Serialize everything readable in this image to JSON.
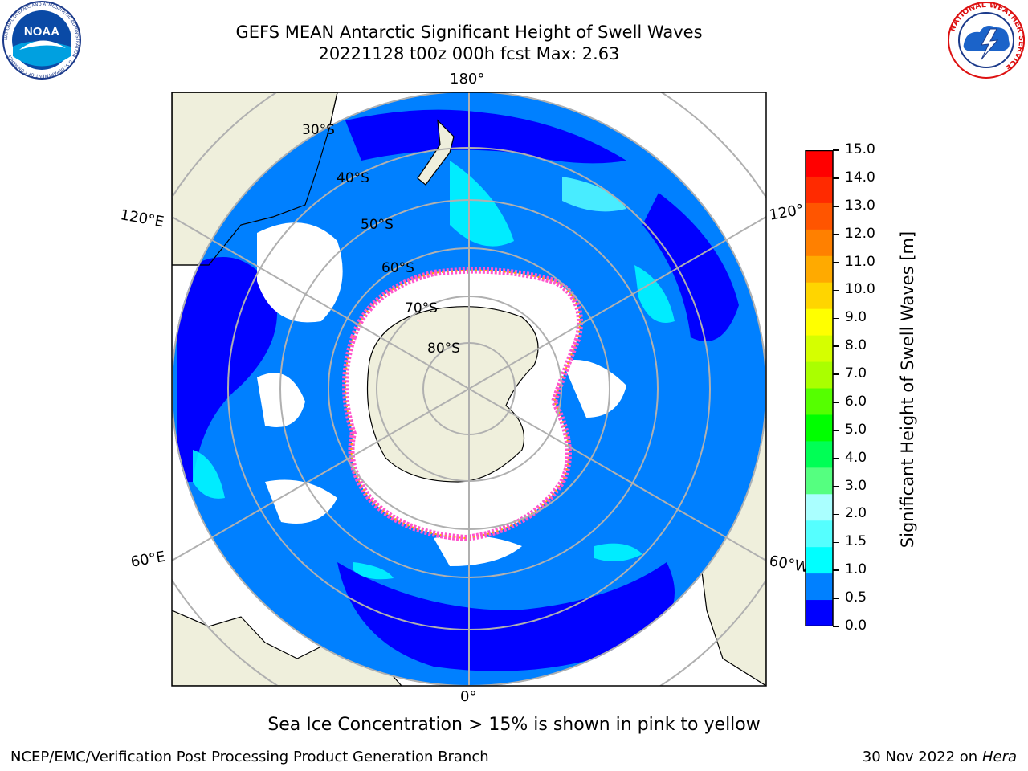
{
  "title_line1": "GEFS MEAN Antarctic Significant Height of Swell Waves",
  "title_line2": "20221128 t00z 000h fcst   Max: 2.63",
  "logos": {
    "noaa": {
      "text": "NOAA",
      "ring_text": "NATIONAL OCEANIC AND ATMOSPHERIC ADMINISTRATION · U.S. DEPARTMENT OF COMMERCE"
    },
    "nws": {
      "ring_text": "NATIONAL WEATHER SERVICE"
    }
  },
  "map": {
    "lon_labels": {
      "top": "180°",
      "bottom": "0°",
      "upper_left": "120°E",
      "lower_left": "60°E",
      "upper_right": "120°",
      "lower_right": "60°W"
    },
    "lat_labels": [
      "30°S",
      "40°S",
      "50°S",
      "60°S",
      "70°S",
      "80°S"
    ],
    "colors": {
      "ocean_low": "#0000ff",
      "ocean_mid": "#0080ff",
      "ocean_high": "#00ffff",
      "land": "#efefdc",
      "sea_ice": "#ffffff",
      "ice_edge": "#ff55cc"
    }
  },
  "colorbar": {
    "label": "Significant Height of Swell Waves [m]",
    "ticks": [
      "15.0",
      "14.0",
      "13.0",
      "12.0",
      "11.0",
      "10.0",
      "9.0",
      "8.0",
      "7.0",
      "6.0",
      "5.0",
      "4.0",
      "3.0",
      "2.0",
      "1.5",
      "1.0",
      "0.5",
      "0.0"
    ],
    "colors_top_to_bottom": [
      "#ff0000",
      "#ff2a00",
      "#ff5500",
      "#ff8000",
      "#ffaa00",
      "#ffd500",
      "#ffff00",
      "#d5ff00",
      "#aaff00",
      "#55ff00",
      "#00ff00",
      "#00ff55",
      "#55ff80",
      "#aaffff",
      "#55ffff",
      "#00ffff",
      "#0080ff",
      "#0000ff"
    ]
  },
  "caption": "Sea Ice Concentration > 15% is shown in pink to yellow",
  "footer_left": "NCEP/EMC/Verification Post Processing Product Generation Branch",
  "footer_right_text": "30 Nov 2022 on",
  "footer_right_italic": "Hera"
}
